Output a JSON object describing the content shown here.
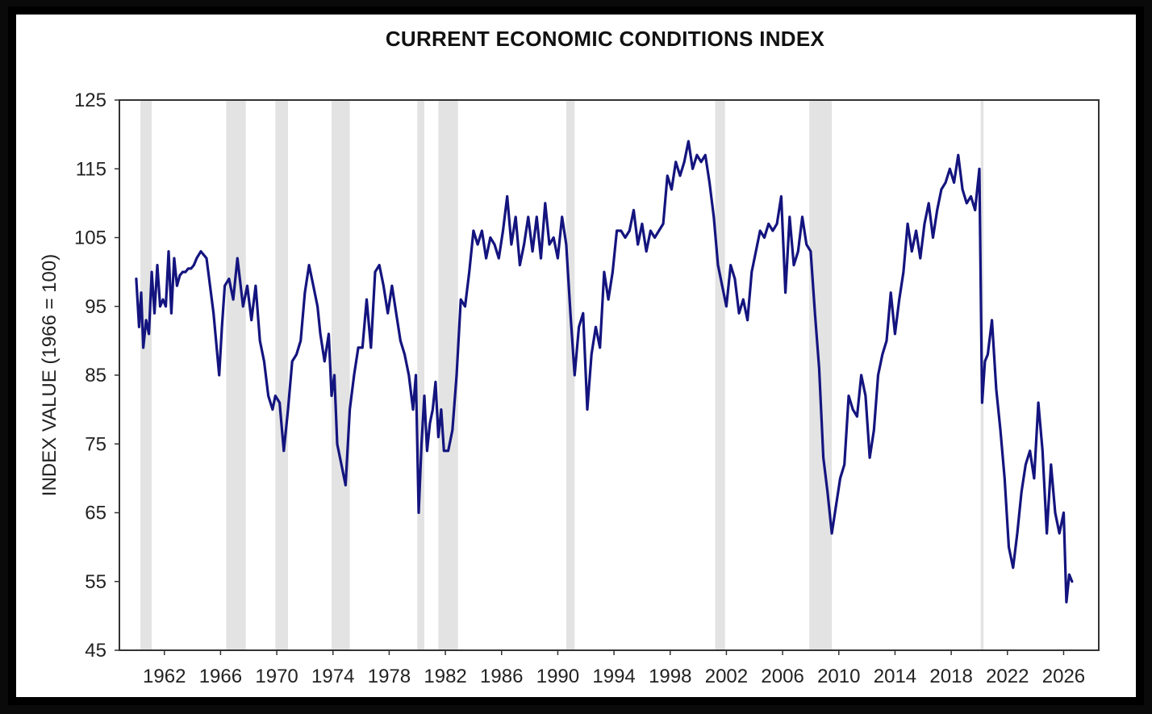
{
  "chart_data": {
    "type": "line",
    "title": "CURRENT ECONOMIC CONDITIONS INDEX",
    "xlabel": "",
    "ylabel": "INDEX VALUE (1966 = 100)",
    "xlim": [
      1958.8,
      2028.5
    ],
    "ylim": [
      45,
      125
    ],
    "yticks": [
      45,
      55,
      65,
      75,
      85,
      95,
      105,
      115,
      125
    ],
    "xticks": [
      1962,
      1966,
      1970,
      1974,
      1978,
      1982,
      1986,
      1990,
      1994,
      1998,
      2002,
      2006,
      2010,
      2014,
      2018,
      2022,
      2026
    ],
    "line_color": "#14147f",
    "recession_color": "#e3e3e3",
    "recessions": [
      [
        1960.3,
        1961.1
      ],
      [
        1966.4,
        1967.8
      ],
      [
        1969.9,
        1970.8
      ],
      [
        1973.9,
        1975.2
      ],
      [
        1980.0,
        1980.5
      ],
      [
        1981.5,
        1982.9
      ],
      [
        1990.6,
        1991.2
      ],
      [
        2001.2,
        2001.9
      ],
      [
        2007.9,
        2009.5
      ],
      [
        2020.1,
        2020.3
      ]
    ],
    "series": [
      {
        "name": "Current Economic Conditions Index",
        "x": [
          1960.0,
          1960.2,
          1960.35,
          1960.5,
          1960.7,
          1960.9,
          1961.1,
          1961.3,
          1961.5,
          1961.7,
          1961.9,
          1962.1,
          1962.3,
          1962.5,
          1962.7,
          1962.9,
          1963.1,
          1963.3,
          1963.5,
          1963.7,
          1963.9,
          1964.1,
          1964.3,
          1964.6,
          1965.0,
          1965.5,
          1965.9,
          1966.1,
          1966.3,
          1966.6,
          1966.9,
          1967.2,
          1967.6,
          1967.9,
          1968.2,
          1968.5,
          1968.8,
          1969.1,
          1969.4,
          1969.7,
          1969.9,
          1970.2,
          1970.5,
          1970.8,
          1971.1,
          1971.4,
          1971.7,
          1972.0,
          1972.3,
          1972.6,
          1972.9,
          1973.1,
          1973.4,
          1973.7,
          1973.9,
          1974.1,
          1974.3,
          1974.6,
          1974.9,
          1975.2,
          1975.5,
          1975.8,
          1976.1,
          1976.4,
          1976.7,
          1977.0,
          1977.3,
          1977.6,
          1977.9,
          1978.2,
          1978.5,
          1978.8,
          1979.1,
          1979.4,
          1979.7,
          1979.9,
          1980.1,
          1980.3,
          1980.5,
          1980.7,
          1980.9,
          1981.1,
          1981.3,
          1981.5,
          1981.7,
          1981.9,
          1982.2,
          1982.5,
          1982.8,
          1983.1,
          1983.4,
          1983.7,
          1984.0,
          1984.3,
          1984.6,
          1984.9,
          1985.2,
          1985.5,
          1985.8,
          1986.1,
          1986.4,
          1986.7,
          1987.0,
          1987.3,
          1987.6,
          1987.9,
          1988.2,
          1988.5,
          1988.8,
          1989.1,
          1989.4,
          1989.7,
          1990.0,
          1990.3,
          1990.6,
          1990.9,
          1991.2,
          1991.5,
          1991.8,
          1992.1,
          1992.4,
          1992.7,
          1993.0,
          1993.3,
          1993.6,
          1993.9,
          1994.2,
          1994.5,
          1994.8,
          1995.1,
          1995.4,
          1995.7,
          1996.0,
          1996.3,
          1996.6,
          1996.9,
          1997.2,
          1997.5,
          1997.8,
          1998.1,
          1998.4,
          1998.7,
          1999.0,
          1999.3,
          1999.6,
          1999.9,
          2000.2,
          2000.5,
          2000.8,
          2001.1,
          2001.4,
          2001.7,
          2002.0,
          2002.3,
          2002.6,
          2002.9,
          2003.2,
          2003.5,
          2003.8,
          2004.1,
          2004.4,
          2004.7,
          2005.0,
          2005.3,
          2005.6,
          2005.9,
          2006.2,
          2006.5,
          2006.8,
          2007.1,
          2007.4,
          2007.7,
          2008.0,
          2008.3,
          2008.6,
          2008.9,
          2009.2,
          2009.5,
          2009.8,
          2010.1,
          2010.4,
          2010.7,
          2011.0,
          2011.3,
          2011.6,
          2011.9,
          2012.2,
          2012.5,
          2012.8,
          2013.1,
          2013.4,
          2013.7,
          2014.0,
          2014.3,
          2014.6,
          2014.9,
          2015.2,
          2015.5,
          2015.8,
          2016.1,
          2016.4,
          2016.7,
          2017.0,
          2017.3,
          2017.6,
          2017.9,
          2018.2,
          2018.5,
          2018.8,
          2019.1,
          2019.4,
          2019.7,
          2020.0,
          2020.2,
          2020.4,
          2020.6,
          2020.9,
          2021.2,
          2021.5,
          2021.8,
          2022.1,
          2022.4,
          2022.7,
          2023.0,
          2023.3,
          2023.6,
          2023.9,
          2024.2,
          2024.5,
          2024.8,
          2025.1,
          2025.4,
          2025.7,
          2026.0,
          2026.2,
          2026.4,
          2026.6
        ],
        "values": [
          99,
          92,
          97,
          89,
          93,
          91,
          100,
          94,
          101,
          95,
          96,
          95,
          103,
          94,
          102,
          98,
          99.5,
          100,
          100,
          100.5,
          100.5,
          101,
          102,
          103,
          102,
          94,
          85,
          92,
          98,
          99,
          96,
          102,
          95,
          98,
          93,
          98,
          90,
          87,
          82,
          80,
          82,
          81,
          74,
          80,
          87,
          88,
          90,
          97,
          101,
          98,
          95,
          91,
          87,
          91,
          82,
          85,
          75,
          72,
          69,
          80,
          85,
          89,
          89,
          96,
          89,
          100,
          101,
          98,
          94,
          98,
          94,
          90,
          88,
          85,
          80,
          85,
          65,
          75,
          82,
          74,
          78,
          80,
          84,
          76,
          80,
          74,
          74,
          77,
          85,
          96,
          95,
          100,
          106,
          104,
          106,
          102,
          105,
          104,
          102,
          106,
          111,
          104,
          108,
          101,
          104,
          108,
          103,
          108,
          102,
          110,
          104,
          105,
          102,
          108,
          104,
          94,
          85,
          92,
          94,
          80,
          88,
          92,
          89,
          100,
          96,
          100,
          106,
          106,
          105,
          106,
          109,
          104,
          107,
          103,
          106,
          105,
          106,
          107,
          114,
          112,
          116,
          114,
          116,
          119,
          115,
          117,
          116,
          117,
          113,
          108,
          101,
          98,
          95,
          101,
          99,
          94,
          96,
          93,
          100,
          103,
          106,
          105,
          107,
          106,
          107,
          111,
          97,
          108,
          101,
          103,
          108,
          104,
          103,
          94,
          86,
          73,
          68,
          62,
          66,
          70,
          72,
          82,
          80,
          79,
          85,
          82,
          73,
          77,
          85,
          88,
          90,
          97,
          91,
          96,
          100,
          107,
          103,
          106,
          102,
          107,
          110,
          105,
          109,
          112,
          113,
          115,
          113,
          117,
          112,
          110,
          111,
          109,
          115,
          81,
          87,
          88,
          93,
          83,
          77,
          70,
          60,
          57,
          62,
          68,
          72,
          74,
          70,
          81,
          74,
          62,
          72,
          65,
          62,
          65,
          52,
          56,
          55
        ]
      }
    ]
  }
}
